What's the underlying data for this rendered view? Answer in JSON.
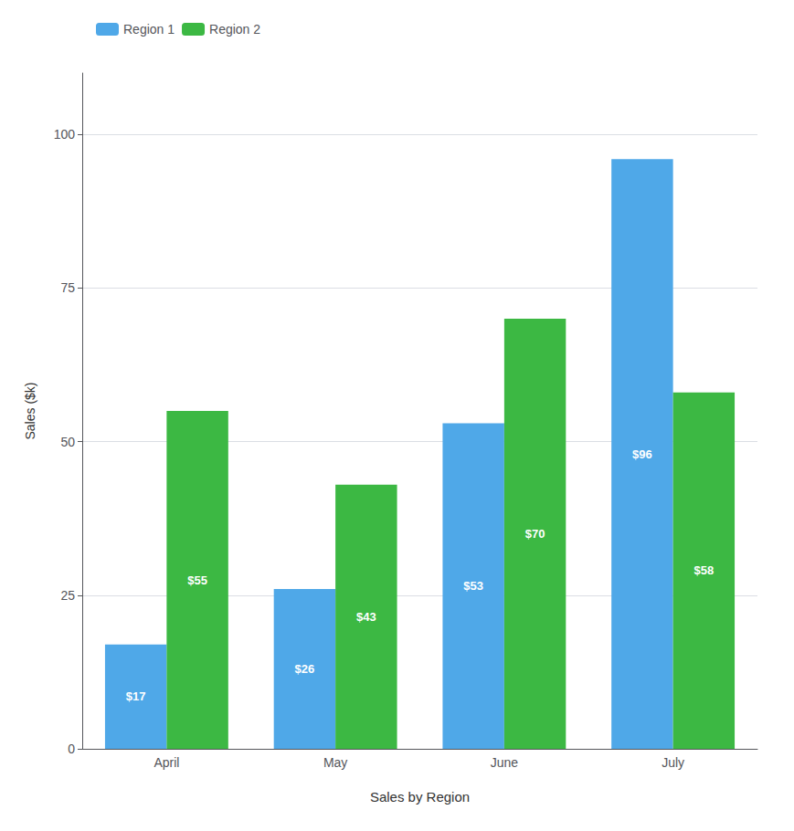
{
  "chart_data": {
    "type": "bar",
    "categories": [
      "April",
      "May",
      "June",
      "July"
    ],
    "series": [
      {
        "name": "Region 1",
        "color": "#4FA8E8",
        "values": [
          17,
          26,
          53,
          96
        ],
        "value_labels": [
          "$17",
          "$26",
          "$53",
          "$96"
        ]
      },
      {
        "name": "Region 2",
        "color": "#3CB843",
        "values": [
          55,
          43,
          70,
          58
        ],
        "value_labels": [
          "$55",
          "$43",
          "$70",
          "$58"
        ]
      }
    ],
    "xlabel": "Sales by Region",
    "ylabel": "Sales ($k)",
    "ylim": [
      0,
      110
    ],
    "yticks": [
      0,
      25,
      50,
      75,
      100
    ],
    "grid": true,
    "legend": "upper left",
    "data_labels": true
  }
}
